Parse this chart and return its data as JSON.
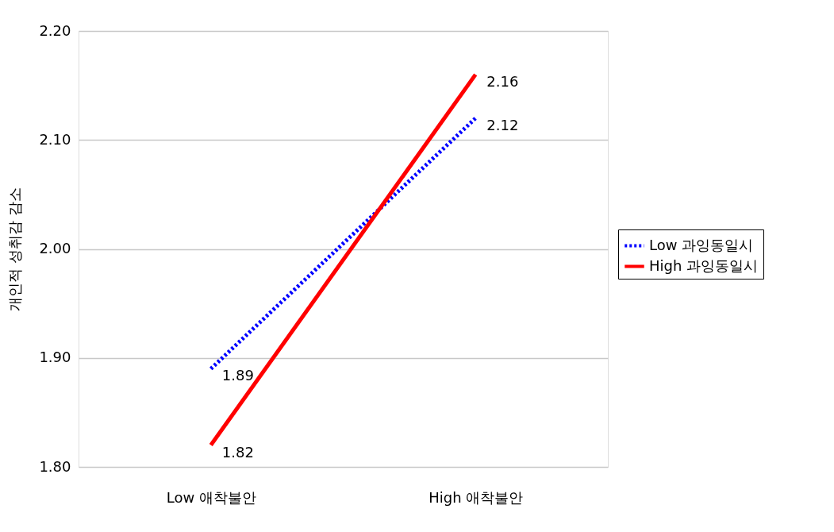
{
  "chart_data": {
    "type": "line",
    "ylabel": "개인적 성취감 감소",
    "categories": [
      "Low 애착불안",
      "High 애착불안"
    ],
    "series": [
      {
        "name": "Low 과잉동일시",
        "color": "#0000ff",
        "line_style": "dotted",
        "values": [
          1.89,
          2.12
        ]
      },
      {
        "name": "High 과잉동일시",
        "color": "#ff0000",
        "line_style": "solid",
        "values": [
          1.82,
          2.16
        ]
      }
    ],
    "ylim": [
      1.8,
      2.2
    ],
    "yticks": [
      {
        "value": 1.8,
        "label": "1.80"
      },
      {
        "value": 1.9,
        "label": "1.90"
      },
      {
        "value": 2.0,
        "label": "2.00"
      },
      {
        "value": 2.1,
        "label": "2.10"
      },
      {
        "value": 2.2,
        "label": "2.20"
      }
    ],
    "grid": "y",
    "legend": "right",
    "data_labels": true,
    "marker": "none"
  }
}
